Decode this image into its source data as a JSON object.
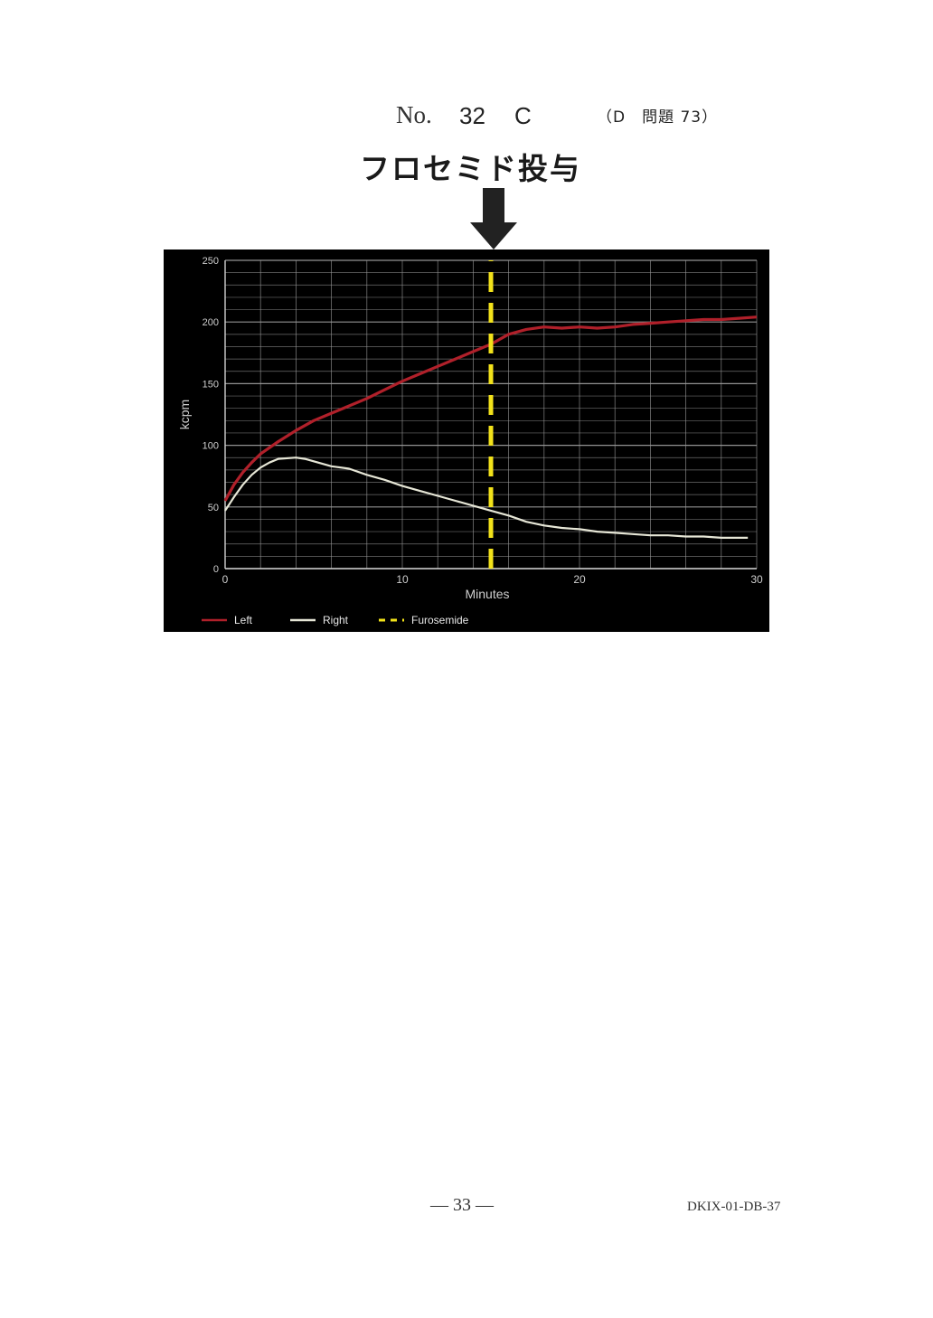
{
  "header": {
    "no_label": "No.",
    "number": "32",
    "grade": "C",
    "reference": "（D　問題 73）"
  },
  "annotation": "フロセミド投与",
  "footer": {
    "page": "— 33 —",
    "code": "DKIX-01-DB-37"
  },
  "colors": {
    "left": "#b0202a",
    "right": "#e6e6d6",
    "furosemide": "#f2e21a",
    "grid": "#9a9a9a",
    "background": "#000000"
  },
  "chart_data": {
    "type": "line",
    "title": "",
    "xlabel": "Minutes",
    "ylabel": "kcpm",
    "xlim": [
      0,
      30
    ],
    "ylim": [
      0,
      250
    ],
    "x_ticks": [
      "0",
      "10",
      "20",
      "30"
    ],
    "y_ticks": [
      "0",
      "50",
      "100",
      "150",
      "200",
      "250"
    ],
    "grid": true,
    "legend_position": "bottom-left",
    "series": [
      {
        "name": "Left",
        "x": [
          0,
          0.5,
          1,
          1.5,
          2,
          3,
          4,
          5,
          6,
          7,
          8,
          9,
          10,
          11,
          12,
          13,
          14,
          15,
          16,
          17,
          18,
          19,
          20,
          21,
          22,
          23,
          24,
          25,
          26,
          27,
          28,
          29,
          30
        ],
        "y": [
          55,
          68,
          78,
          86,
          93,
          103,
          112,
          120,
          126,
          132,
          138,
          145,
          152,
          158,
          164,
          170,
          176,
          182,
          190,
          194,
          196,
          195,
          196,
          195,
          196,
          198,
          199,
          200,
          201,
          202,
          202,
          203,
          204
        ]
      },
      {
        "name": "Right",
        "x": [
          0,
          0.5,
          1,
          1.5,
          2,
          2.5,
          3,
          4,
          4.5,
          5,
          6,
          7,
          8,
          9,
          10,
          11,
          12,
          13,
          14,
          15,
          16,
          17,
          18,
          19,
          20,
          21,
          22,
          23,
          24,
          25,
          26,
          27,
          28,
          29,
          29.5
        ],
        "y": [
          47,
          58,
          68,
          76,
          82,
          86,
          89,
          90,
          89,
          87,
          83,
          81,
          76,
          72,
          67,
          63,
          59,
          55,
          51,
          47,
          43,
          38,
          35,
          33,
          32,
          30,
          29,
          28,
          27,
          27,
          26,
          26,
          25,
          25,
          25
        ]
      },
      {
        "name": "Furosemide",
        "x": [
          15,
          15
        ],
        "y": [
          0,
          250
        ]
      }
    ]
  }
}
